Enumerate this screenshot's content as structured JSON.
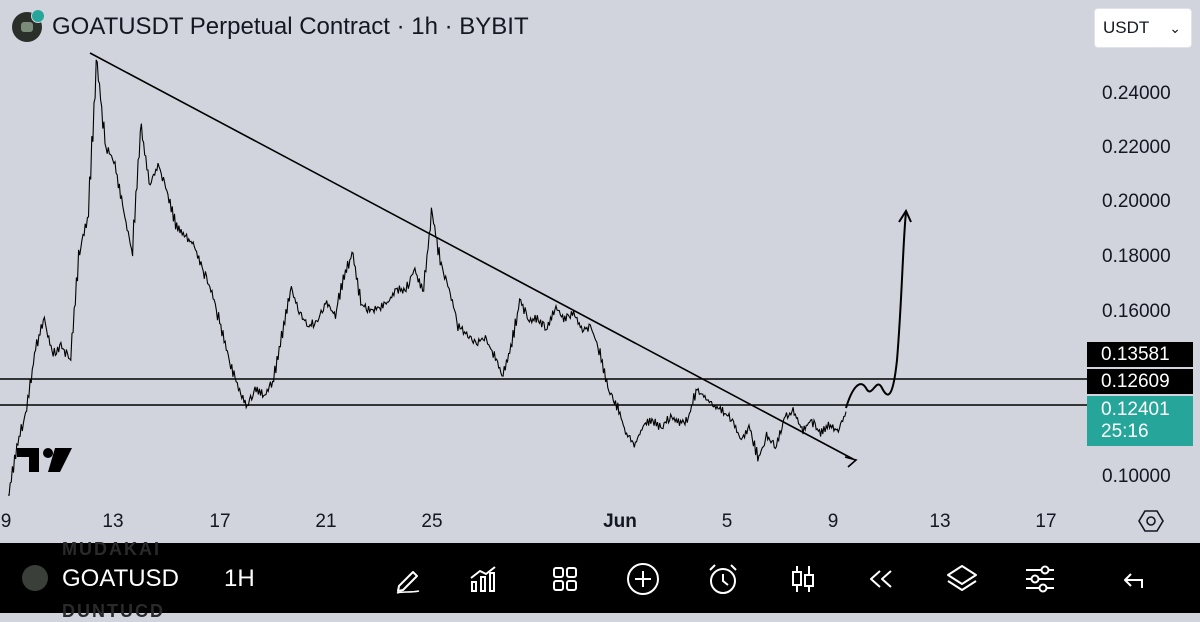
{
  "header": {
    "title": "GOATUSDT Perpetual Contract · 1h · BYBIT",
    "currency": "USDT"
  },
  "price_axis": {
    "labels": [
      "0.24000",
      "0.22000",
      "0.20000",
      "0.18000",
      "0.16000",
      "0.10000"
    ],
    "tags": {
      "upper": "0.13581",
      "lower": "0.12609",
      "current": "0.12401",
      "countdown": "25:16"
    }
  },
  "time_axis": {
    "labels": [
      "9",
      "13",
      "17",
      "21",
      "25",
      "Jun",
      "5",
      "9",
      "13",
      "17"
    ]
  },
  "chart_data": {
    "type": "line",
    "symbol": "GOATUSDT",
    "ylim": [
      0.093,
      0.2575
    ],
    "y_ticks": [
      0.24,
      0.22,
      0.2,
      0.18,
      0.16,
      0.1
    ],
    "x_tick_labels": [
      "9",
      "13",
      "17",
      "21",
      "25",
      "Jun",
      "5",
      "9",
      "13",
      "17"
    ],
    "price_path": [
      0.0935,
      0.112,
      0.124,
      0.146,
      0.158,
      0.145,
      0.148,
      0.143,
      0.182,
      0.195,
      0.252,
      0.221,
      0.215,
      0.198,
      0.182,
      0.228,
      0.207,
      0.214,
      0.204,
      0.192,
      0.188,
      0.185,
      0.176,
      0.168,
      0.156,
      0.143,
      0.133,
      0.126,
      0.132,
      0.13,
      0.135,
      0.152,
      0.169,
      0.16,
      0.155,
      0.157,
      0.164,
      0.159,
      0.173,
      0.182,
      0.163,
      0.161,
      0.162,
      0.164,
      0.169,
      0.168,
      0.176,
      0.168,
      0.197,
      0.178,
      0.168,
      0.155,
      0.152,
      0.149,
      0.151,
      0.145,
      0.137,
      0.148,
      0.165,
      0.157,
      0.158,
      0.154,
      0.162,
      0.158,
      0.16,
      0.154,
      0.155,
      0.146,
      0.132,
      0.126,
      0.116,
      0.112,
      0.119,
      0.121,
      0.118,
      0.122,
      0.12,
      0.121,
      0.132,
      0.129,
      0.126,
      0.124,
      0.121,
      0.114,
      0.118,
      0.107,
      0.115,
      0.111,
      0.122,
      0.124,
      0.117,
      0.121,
      0.116,
      0.119,
      0.117,
      0.124
    ],
    "horizontal_levels": [
      0.1358,
      0.1261
    ],
    "current_price": 0.12401,
    "countdown": "25:16"
  },
  "toolbar": {
    "symbol": "GOATUSD",
    "interval": "1H",
    "buttons": [
      "pencil-icon",
      "indicators-icon",
      "layout-grid-icon",
      "add-icon",
      "alarm-icon",
      "candles-icon",
      "replay-icon",
      "layers-icon",
      "settings-sliders-icon",
      "undo-icon"
    ]
  }
}
